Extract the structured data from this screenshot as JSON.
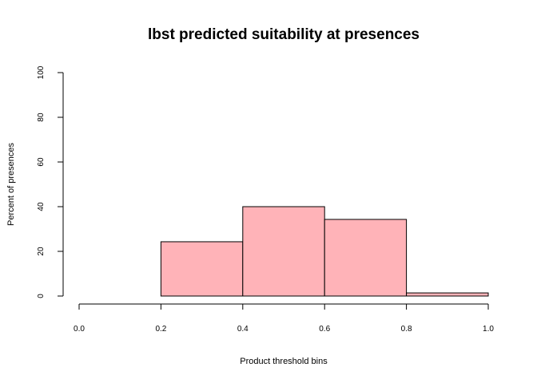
{
  "chart_data": {
    "type": "bar",
    "title": "lbst predicted suitability at presences",
    "xlabel": "Product threshold bins",
    "ylabel": "Percent of presences",
    "bins": [
      {
        "start": 0.0,
        "end": 0.2,
        "value": 0
      },
      {
        "start": 0.2,
        "end": 0.4,
        "value": 24.3
      },
      {
        "start": 0.4,
        "end": 0.6,
        "value": 40.0
      },
      {
        "start": 0.6,
        "end": 0.8,
        "value": 34.3
      },
      {
        "start": 0.8,
        "end": 1.0,
        "value": 1.4
      }
    ],
    "xlim": [
      0,
      1
    ],
    "ylim": [
      0,
      100
    ],
    "x_ticks": [
      "0.0",
      "0.2",
      "0.4",
      "0.6",
      "0.8",
      "1.0"
    ],
    "y_ticks": [
      "0",
      "20",
      "40",
      "60",
      "80",
      "100"
    ],
    "grid": false,
    "bar_color": "#FFB3B8",
    "edge_color": "#000000"
  }
}
